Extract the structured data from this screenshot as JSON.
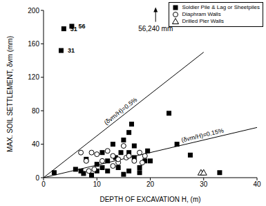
{
  "chart_data": {
    "type": "scatter",
    "xlabel": "DEPTH OF EXCAVATION H, (m)",
    "ylabel": "MAX. SOIL SETTLEMENT, δvm (mm)",
    "xlim": [
      0,
      40
    ],
    "xticks": [
      0,
      10,
      20,
      30,
      40
    ],
    "ylim": [
      0,
      200
    ],
    "yticks": [
      0,
      40,
      80,
      120,
      160,
      200
    ],
    "grid": false,
    "legend": "upper right",
    "series": [
      {
        "name": "Soldier Pile & Lag or Sheetpiles",
        "color": "#000000",
        "marker": "square",
        "x": [
          3.8,
          3.3,
          5.3,
          2,
          6,
          7,
          7.5,
          8,
          9,
          10,
          10,
          11,
          11,
          12,
          12,
          13,
          13.5,
          14,
          14.5,
          15,
          15,
          16,
          16,
          16,
          16.5,
          17,
          17,
          18,
          18,
          19,
          19.5,
          20,
          23.5,
          25,
          27.5,
          33
        ],
        "y": [
          178,
          152,
          181,
          6,
          10,
          8,
          5,
          22,
          3,
          16,
          8,
          12,
          30,
          20,
          8,
          40,
          24,
          12,
          30,
          45,
          4,
          8,
          54,
          30,
          64,
          38,
          24,
          12,
          6,
          20,
          32,
          20,
          77,
          40,
          27,
          6
        ],
        "point_labels": [
          "31",
          "31",
          "56",
          null,
          null,
          null,
          null,
          null,
          null,
          null,
          null,
          null,
          null,
          null,
          null,
          null,
          null,
          null,
          null,
          null,
          null,
          null,
          null,
          null,
          null,
          null,
          null,
          null,
          null,
          null,
          null,
          null,
          null,
          null,
          null,
          null
        ]
      },
      {
        "name": "Diaphram Walls",
        "color": "#000000",
        "marker": "circle-open",
        "x": [
          7,
          8,
          8.5,
          9,
          9.5,
          10,
          11,
          12,
          13,
          13,
          14,
          14,
          15,
          15.5,
          16,
          17,
          18,
          18.5,
          19
        ],
        "y": [
          30,
          20,
          8,
          30,
          10,
          28,
          20,
          32,
          26,
          14,
          18,
          22,
          38,
          24,
          26,
          20,
          30,
          18,
          26
        ]
      },
      {
        "name": "Drilled Pier Walls",
        "color": "#000000",
        "marker": "triangle-open",
        "x": [
          29.5,
          30
        ],
        "y": [
          6,
          6
        ]
      }
    ],
    "lines": [
      {
        "label": "(δvm/H)=0.5%",
        "x": [
          0,
          30
        ],
        "y": [
          0,
          150
        ],
        "color": "#000000"
      },
      {
        "label": "(δvm/H)=0.15%",
        "x": [
          0,
          40
        ],
        "y": [
          0,
          60
        ],
        "color": "#000000"
      }
    ],
    "annotations": [
      {
        "text": "56,240 mm",
        "x": 21,
        "y": 178
      }
    ]
  }
}
